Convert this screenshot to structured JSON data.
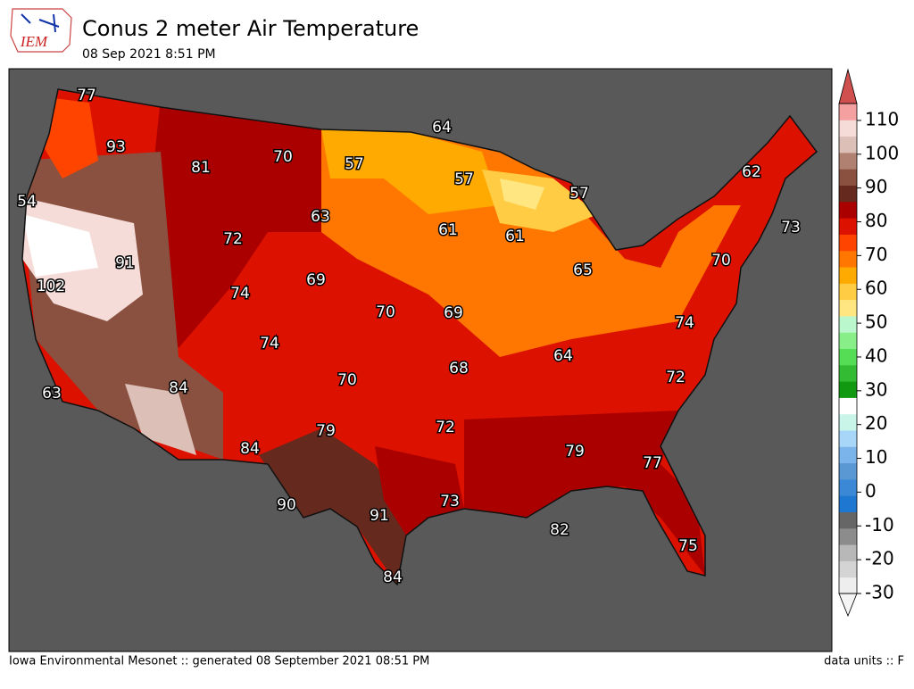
{
  "logo": "IEM",
  "title": "Conus 2 meter Air Temperature",
  "subtitle": "08 Sep 2021 8:51 PM",
  "footer_left": "Iowa Environmental Mesonet :: generated 08 September 2021 08:51 PM",
  "footer_right": "data units :: F",
  "colorbar": {
    "lim": [
      -30,
      115
    ],
    "ticks": [
      -30,
      -20,
      -10,
      0,
      10,
      20,
      30,
      40,
      50,
      60,
      70,
      80,
      90,
      100,
      110
    ],
    "colors": [
      "#eeeeee",
      "#d4d4d4",
      "#b8b8b8",
      "#8c8c8c",
      "#666666",
      "#1e78d2",
      "#3a88d6",
      "#5a98d4",
      "#7ab4ea",
      "#a8d6f8",
      "#c8f5e8",
      "#ffffff",
      "#119911",
      "#33bb33",
      "#55dd55",
      "#88ee88",
      "#bbf7cc",
      "#ffe680",
      "#ffcc44",
      "#ffaa00",
      "#ff7700",
      "#ff4400",
      "#dd1100",
      "#aa0000",
      "#66291e",
      "#8a5040",
      "#b08070",
      "#dcc0b8",
      "#f5dcd8",
      "#f5a0a0"
    ],
    "under_color": "#f5f5f5",
    "over_color": "#d05050"
  },
  "stations": [
    77,
    93,
    81,
    70,
    57,
    64,
    57,
    57,
    62,
    54,
    63,
    72,
    61,
    61,
    73,
    91,
    70,
    102,
    69,
    65,
    74,
    70,
    69,
    74,
    74,
    64,
    68,
    70,
    72,
    84,
    63,
    79,
    72,
    79,
    77,
    84,
    90,
    91,
    73,
    82,
    75,
    84
  ]
}
